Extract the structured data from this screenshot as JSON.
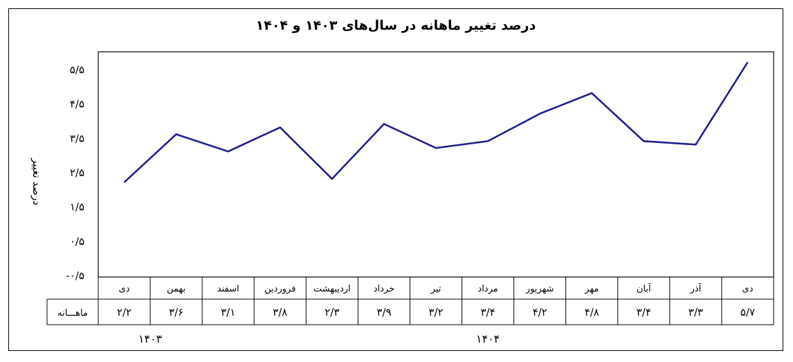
{
  "chart_data": {
    "type": "line",
    "title": "درصد تغییر ماهانه در سال‌های ۱۴۰۳ و ۱۴۰۴",
    "ylabel": "درصد تغییر",
    "xlabel": "",
    "ylim": [
      -0.5,
      6
    ],
    "yticks": [
      {
        "value": 5.5,
        "label": "۵/۵"
      },
      {
        "value": 4.5,
        "label": "۴/۵"
      },
      {
        "value": 3.5,
        "label": "۳/۵"
      },
      {
        "value": 2.5,
        "label": "۲/۵"
      },
      {
        "value": 1.5,
        "label": "۱/۵"
      },
      {
        "value": 0.5,
        "label": "۰/۵"
      },
      {
        "value": -0.5,
        "label": "-۰/۵"
      }
    ],
    "categories": [
      "دی",
      "بهمن",
      "اسفند",
      "فروردین",
      "اردیبهشت",
      "خرداد",
      "تیر",
      "مرداد",
      "شهریور",
      "مهر",
      "آبان",
      "آذر",
      "دی"
    ],
    "series": [
      {
        "name": "ماهـــانه",
        "values": [
          2.2,
          3.6,
          3.1,
          3.8,
          2.3,
          3.9,
          3.2,
          3.4,
          4.2,
          4.8,
          3.4,
          3.3,
          5.7
        ],
        "labels": [
          "۲/۲",
          "۳/۶",
          "۳/۱",
          "۳/۸",
          "۲/۳",
          "۳/۹",
          "۳/۲",
          "۳/۴",
          "۴/۲",
          "۴/۸",
          "۳/۴",
          "۳/۳",
          "۵/۷"
        ]
      }
    ],
    "year_groups": [
      {
        "label": "۱۴۰۳",
        "start": 0,
        "end": 1
      },
      {
        "label": "۱۴۰۴",
        "start": 2,
        "end": 12
      }
    ],
    "line_color": "#1f1f8f",
    "grid": false,
    "legend": "table-bottom"
  }
}
